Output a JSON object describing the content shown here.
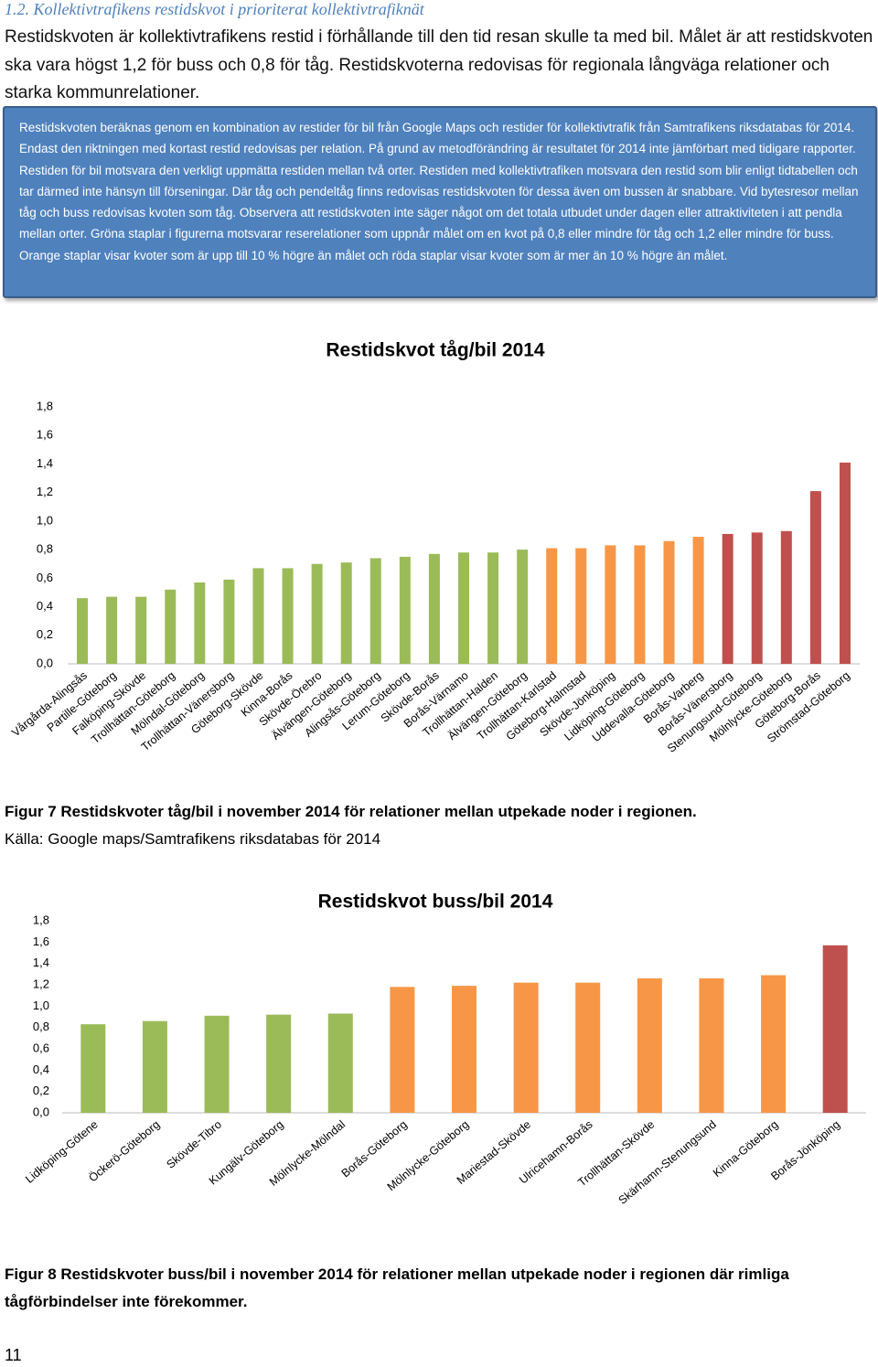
{
  "heading": "1.2. Kollektivtrafikens restidskvot i prioriterat kollektivtrafiknät",
  "intro": "Restidskvoten är kollektivtrafikens restid i förhållande till den tid resan skulle ta med bil. Målet är att restidskvoten ska vara högst 1,2 för buss och 0,8 för tåg. Restidskvoterna redovisas för regionala långväga relationer och starka kommunrelationer.",
  "box_text": "Restidskvoten beräknas genom en kombination av restider för bil från Google Maps och restider för kollektivtrafik från Samtrafikens riksdatabas för 2014. Endast den riktningen med kortast restid redovisas per relation. På grund av metodförändring är resultatet för 2014 inte jämförbart med tidigare rapporter. Restiden för bil motsvara den verkligt uppmätta restiden mellan två orter. Restiden med kollektivtrafiken motsvara den restid som blir enligt tidtabellen och tar därmed inte hänsyn till förseningar. Där tåg och pendeltåg finns redovisas restidskvoten för dessa även om bussen är snabbare. Vid bytesresor mellan tåg och buss redovisas kvoten som tåg. Observera att restidskvoten inte säger något om det totala utbudet under dagen eller attraktiviteten i att pendla mellan orter. Gröna staplar i figurerna motsvarar reserelationer som uppnår målet om en kvot på 0,8 eller mindre för tåg och 1,2 eller mindre för buss. Orange staplar visar kvoter som är upp till 10 % högre än målet och röda staplar visar kvoter som är mer än 10 % högre än målet.",
  "chart_data": [
    {
      "type": "bar",
      "title": "Restidskvot tåg/bil 2014",
      "categories": [
        "Vårgårda-Alingsås",
        "Partille-Göteborg",
        "Falköping-Skövde",
        "Trollhättan-Göteborg",
        "Mölndal-Göteborg",
        "Trollhättan-Vänersborg",
        "Göteborg-Skövde",
        "Kinna-Borås",
        "Skövde-Örebro",
        "Älvängen-Göteborg",
        "Alingsås-Göteborg",
        "Lerum-Göteborg",
        "Skövde-Borås",
        "Borås-Värnamo",
        "Trollhättan-Halden",
        "Älvängen-Göteborg",
        "Trollhättan-Karlstad",
        "Göteborg-Halmstad",
        "Skövde-Jönköping",
        "Lidköping-Göteborg",
        "Uddevalla-Göteborg",
        "Borås-Varberg",
        "Borås-Vänersborg",
        "Stenungsund-Göteborg",
        "Mölnlycke-Göteborg",
        "Göteborg-Borås",
        "Strömstad-Göteborg"
      ],
      "values": [
        0.46,
        0.47,
        0.47,
        0.52,
        0.57,
        0.59,
        0.67,
        0.67,
        0.7,
        0.71,
        0.74,
        0.75,
        0.77,
        0.78,
        0.78,
        0.8,
        0.81,
        0.81,
        0.83,
        0.83,
        0.86,
        0.89,
        0.91,
        0.92,
        0.93,
        1.21,
        1.41
      ],
      "colors": [
        "#9bbb59",
        "#9bbb59",
        "#9bbb59",
        "#9bbb59",
        "#9bbb59",
        "#9bbb59",
        "#9bbb59",
        "#9bbb59",
        "#9bbb59",
        "#9bbb59",
        "#9bbb59",
        "#9bbb59",
        "#9bbb59",
        "#9bbb59",
        "#9bbb59",
        "#9bbb59",
        "#f79646",
        "#f79646",
        "#f79646",
        "#f79646",
        "#f79646",
        "#f79646",
        "#c0504d",
        "#c0504d",
        "#c0504d",
        "#c0504d",
        "#c0504d"
      ],
      "ylim": [
        0,
        1.8
      ],
      "yticks": [
        {
          "value": 0,
          "label": "0,0"
        },
        {
          "value": 0.2,
          "label": "0,2"
        },
        {
          "value": 0.4,
          "label": "0,4"
        },
        {
          "value": 0.6,
          "label": "0,6"
        },
        {
          "value": 0.8,
          "label": "0,8"
        },
        {
          "value": 1.0,
          "label": "1,0"
        },
        {
          "value": 1.2,
          "label": "1,2"
        },
        {
          "value": 1.4,
          "label": "1,4"
        },
        {
          "value": 1.6,
          "label": "1,6"
        },
        {
          "value": 1.8,
          "label": "1,8"
        }
      ]
    },
    {
      "type": "bar",
      "title": "Restidskvot buss/bil 2014",
      "categories": [
        "Lidköping-Götene",
        "Öckerö-Göteborg",
        "Skövde-Tibro",
        "Kungälv-Göteborg",
        "Mölnlycke-Mölndal",
        "Borås-Göteborg",
        "Mölnlycke-Göteborg",
        "Mariestad-Skövde",
        "Ulricehamn-Borås",
        "Trollhättan-Skövde",
        "Skärhamn-Stenungsund",
        "Kinna-Göteborg",
        "Borås-Jönköping"
      ],
      "values": [
        0.83,
        0.86,
        0.91,
        0.92,
        0.93,
        1.18,
        1.19,
        1.22,
        1.22,
        1.26,
        1.26,
        1.29,
        1.57
      ],
      "colors": [
        "#9bbb59",
        "#9bbb59",
        "#9bbb59",
        "#9bbb59",
        "#9bbb59",
        "#f79646",
        "#f79646",
        "#f79646",
        "#f79646",
        "#f79646",
        "#f79646",
        "#f79646",
        "#c0504d"
      ],
      "ylim": [
        0,
        1.8
      ],
      "yticks": [
        {
          "value": 0,
          "label": "0,0"
        },
        {
          "value": 0.2,
          "label": "0,2"
        },
        {
          "value": 0.4,
          "label": "0,4"
        },
        {
          "value": 0.6,
          "label": "0,6"
        },
        {
          "value": 0.8,
          "label": "0,8"
        },
        {
          "value": 1.0,
          "label": "1,0"
        },
        {
          "value": 1.2,
          "label": "1,2"
        },
        {
          "value": 1.4,
          "label": "1,4"
        },
        {
          "value": 1.6,
          "label": "1,6"
        },
        {
          "value": 1.8,
          "label": "1,8"
        }
      ]
    }
  ],
  "captions": [
    {
      "bold": "Figur 7 Restidskvoter tåg/bil i november 2014 för relationer mellan utpekade noder i regionen.",
      "source": "Källa: Google maps/Samtrafikens riksdatabas för 2014"
    },
    {
      "bold": "Figur 8 Restidskvoter buss/bil i november 2014 för relationer mellan utpekade noder i regionen där rimliga tågförbindelser inte förekommer."
    }
  ],
  "page_number": "11"
}
